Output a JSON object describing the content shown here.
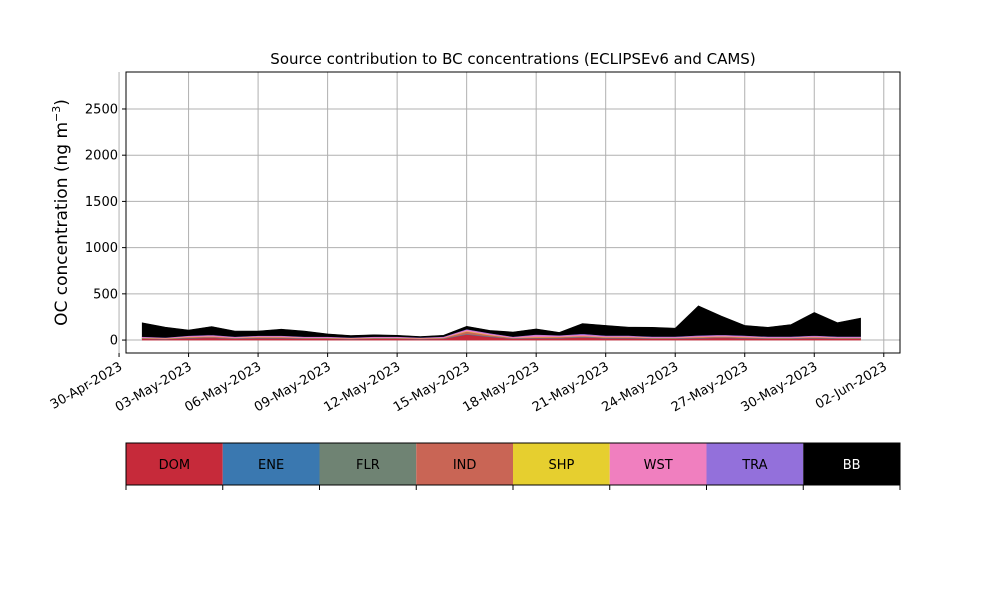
{
  "chart_data": {
    "type": "area",
    "stacked": true,
    "title": "Source contribution to BC concentrations (ECLIPSEv6 and CAMS)",
    "xlabel": "",
    "ylabel": "OC concentration (ng m",
    "ylabel_sup": "−3",
    "ylabel_close": ")",
    "ylim": [
      -140,
      2900
    ],
    "yticks": [
      0,
      500,
      1000,
      1500,
      2000,
      2500
    ],
    "ytick_labels": [
      "0",
      "500",
      "1000",
      "1500",
      "2000",
      "2500"
    ],
    "xlim_days": [
      -0.7,
      32.7
    ],
    "xticks": [
      "30-Apr-2023",
      "03-May-2023",
      "06-May-2023",
      "09-May-2023",
      "12-May-2023",
      "15-May-2023",
      "18-May-2023",
      "21-May-2023",
      "24-May-2023",
      "27-May-2023",
      "30-May-2023",
      "02-Jun-2023"
    ],
    "grid": true,
    "legend": {
      "placement": "bottom",
      "entries": [
        {
          "name": "DOM",
          "color": "#c62a3a",
          "text_color": "#000000"
        },
        {
          "name": "ENE",
          "color": "#3a78b0",
          "text_color": "#000000"
        },
        {
          "name": "FLR",
          "color": "#6f8373",
          "text_color": "#000000"
        },
        {
          "name": "IND",
          "color": "#c96555",
          "text_color": "#000000"
        },
        {
          "name": "SHP",
          "color": "#e6cf2f",
          "text_color": "#000000"
        },
        {
          "name": "WST",
          "color": "#f07fbf",
          "text_color": "#000000"
        },
        {
          "name": "TRA",
          "color": "#9370db",
          "text_color": "#000000"
        },
        {
          "name": "BB",
          "color": "#000000",
          "text_color": "#ffffff"
        }
      ]
    },
    "x": [
      "2023-05-01",
      "2023-05-02",
      "2023-05-03",
      "2023-05-04",
      "2023-05-05",
      "2023-05-06",
      "2023-05-07",
      "2023-05-08",
      "2023-05-09",
      "2023-05-10",
      "2023-05-11",
      "2023-05-12",
      "2023-05-13",
      "2023-05-14",
      "2023-05-15",
      "2023-05-16",
      "2023-05-17",
      "2023-05-18",
      "2023-05-19",
      "2023-05-20",
      "2023-05-21",
      "2023-05-22",
      "2023-05-23",
      "2023-05-24",
      "2023-05-25",
      "2023-05-26",
      "2023-05-27",
      "2023-05-28",
      "2023-05-29",
      "2023-05-30",
      "2023-05-31",
      "2023-06-01"
    ],
    "series": [
      {
        "name": "DOM",
        "values": [
          15,
          10,
          20,
          25,
          15,
          20,
          20,
          15,
          15,
          10,
          15,
          15,
          10,
          15,
          60,
          35,
          15,
          20,
          20,
          30,
          20,
          20,
          15,
          15,
          20,
          25,
          20,
          15,
          15,
          20,
          15,
          15
        ]
      },
      {
        "name": "ENE",
        "values": [
          2,
          2,
          3,
          3,
          2,
          3,
          3,
          2,
          2,
          2,
          2,
          2,
          2,
          2,
          5,
          4,
          2,
          3,
          3,
          3,
          3,
          3,
          2,
          2,
          3,
          3,
          3,
          2,
          2,
          3,
          2,
          2
        ]
      },
      {
        "name": "FLR",
        "values": [
          2,
          2,
          2,
          2,
          2,
          2,
          2,
          2,
          2,
          2,
          2,
          2,
          2,
          2,
          3,
          3,
          2,
          2,
          2,
          2,
          2,
          2,
          2,
          2,
          2,
          2,
          2,
          2,
          2,
          2,
          2,
          2
        ]
      },
      {
        "name": "IND",
        "values": [
          5,
          4,
          6,
          8,
          5,
          6,
          6,
          5,
          5,
          4,
          5,
          5,
          4,
          5,
          25,
          12,
          5,
          6,
          8,
          8,
          6,
          6,
          5,
          5,
          6,
          8,
          6,
          5,
          5,
          6,
          5,
          5
        ]
      },
      {
        "name": "SHP",
        "values": [
          2,
          2,
          3,
          3,
          2,
          3,
          3,
          2,
          2,
          2,
          2,
          2,
          2,
          2,
          5,
          4,
          2,
          4,
          3,
          3,
          3,
          3,
          2,
          2,
          3,
          3,
          3,
          2,
          2,
          3,
          2,
          2
        ]
      },
      {
        "name": "WST",
        "values": [
          8,
          6,
          10,
          12,
          8,
          10,
          10,
          8,
          8,
          6,
          8,
          8,
          6,
          8,
          15,
          12,
          8,
          20,
          12,
          15,
          10,
          10,
          8,
          8,
          12,
          12,
          10,
          8,
          8,
          10,
          8,
          8
        ]
      },
      {
        "name": "TRA",
        "values": [
          3,
          3,
          4,
          4,
          3,
          4,
          4,
          3,
          3,
          3,
          3,
          3,
          3,
          3,
          6,
          5,
          3,
          6,
          5,
          8,
          5,
          5,
          4,
          4,
          5,
          5,
          5,
          4,
          4,
          5,
          4,
          4
        ]
      },
      {
        "name": "BB",
        "values": [
          150,
          110,
          60,
          90,
          60,
          50,
          70,
          60,
          30,
          20,
          20,
          15,
          10,
          15,
          30,
          30,
          50,
          60,
          30,
          110,
          110,
          90,
          100,
          90,
          320,
          200,
          110,
          100,
          130,
          250,
          150,
          200
        ]
      }
    ]
  }
}
